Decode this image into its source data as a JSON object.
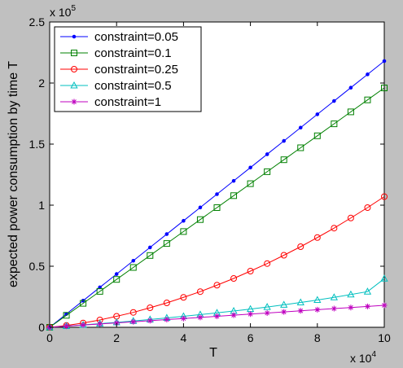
{
  "chart_data": {
    "type": "line",
    "title": "",
    "xlabel": "T",
    "ylabel": "expected power consumption by time T",
    "xlim": [
      0,
      10
    ],
    "ylim": [
      0,
      2.5
    ],
    "x_multiplier": "x 10",
    "x_multiplier_exp": "4",
    "y_multiplier": "x 10",
    "y_multiplier_exp": "5",
    "x_ticks": [
      0,
      2,
      4,
      6,
      8,
      10
    ],
    "y_ticks": [
      0,
      0.5,
      1,
      1.5,
      2,
      2.5
    ],
    "grid": false,
    "legend_position": "top-left",
    "x": [
      0,
      0.5,
      1,
      1.5,
      2,
      2.5,
      3,
      3.5,
      4,
      4.5,
      5,
      5.5,
      6,
      6.5,
      7,
      7.5,
      8,
      8.5,
      9,
      9.5,
      10
    ],
    "series": [
      {
        "name": "constraint=0.05",
        "color": "#0000ff",
        "marker": "dot",
        "values": [
          0,
          0.109,
          0.218,
          0.327,
          0.436,
          0.545,
          0.654,
          0.763,
          0.872,
          0.981,
          1.09,
          1.199,
          1.308,
          1.417,
          1.526,
          1.635,
          1.744,
          1.853,
          1.962,
          2.071,
          2.18
        ]
      },
      {
        "name": "constraint=0.1",
        "color": "#008000",
        "marker": "square",
        "values": [
          0,
          0.098,
          0.196,
          0.294,
          0.392,
          0.49,
          0.588,
          0.686,
          0.784,
          0.882,
          0.98,
          1.078,
          1.176,
          1.274,
          1.372,
          1.47,
          1.568,
          1.666,
          1.764,
          1.862,
          1.96
        ]
      },
      {
        "name": "constraint=0.25",
        "color": "#ff0000",
        "marker": "circle",
        "values": [
          0,
          0.015,
          0.035,
          0.06,
          0.09,
          0.122,
          0.16,
          0.2,
          0.245,
          0.292,
          0.345,
          0.4,
          0.46,
          0.522,
          0.59,
          0.66,
          0.735,
          0.812,
          0.895,
          0.98,
          1.07
        ]
      },
      {
        "name": "constraint=0.5",
        "color": "#00bfbf",
        "marker": "triangle",
        "values": [
          0,
          0.01,
          0.02,
          0.03,
          0.04,
          0.052,
          0.064,
          0.077,
          0.09,
          0.104,
          0.118,
          0.133,
          0.149,
          0.166,
          0.184,
          0.203,
          0.223,
          0.245,
          0.268,
          0.292,
          0.398
        ]
      },
      {
        "name": "constraint=1",
        "color": "#bf00bf",
        "marker": "star",
        "values": [
          0,
          0.009,
          0.018,
          0.027,
          0.036,
          0.045,
          0.054,
          0.063,
          0.072,
          0.081,
          0.09,
          0.099,
          0.108,
          0.117,
          0.126,
          0.135,
          0.144,
          0.153,
          0.162,
          0.171,
          0.18
        ]
      }
    ]
  }
}
